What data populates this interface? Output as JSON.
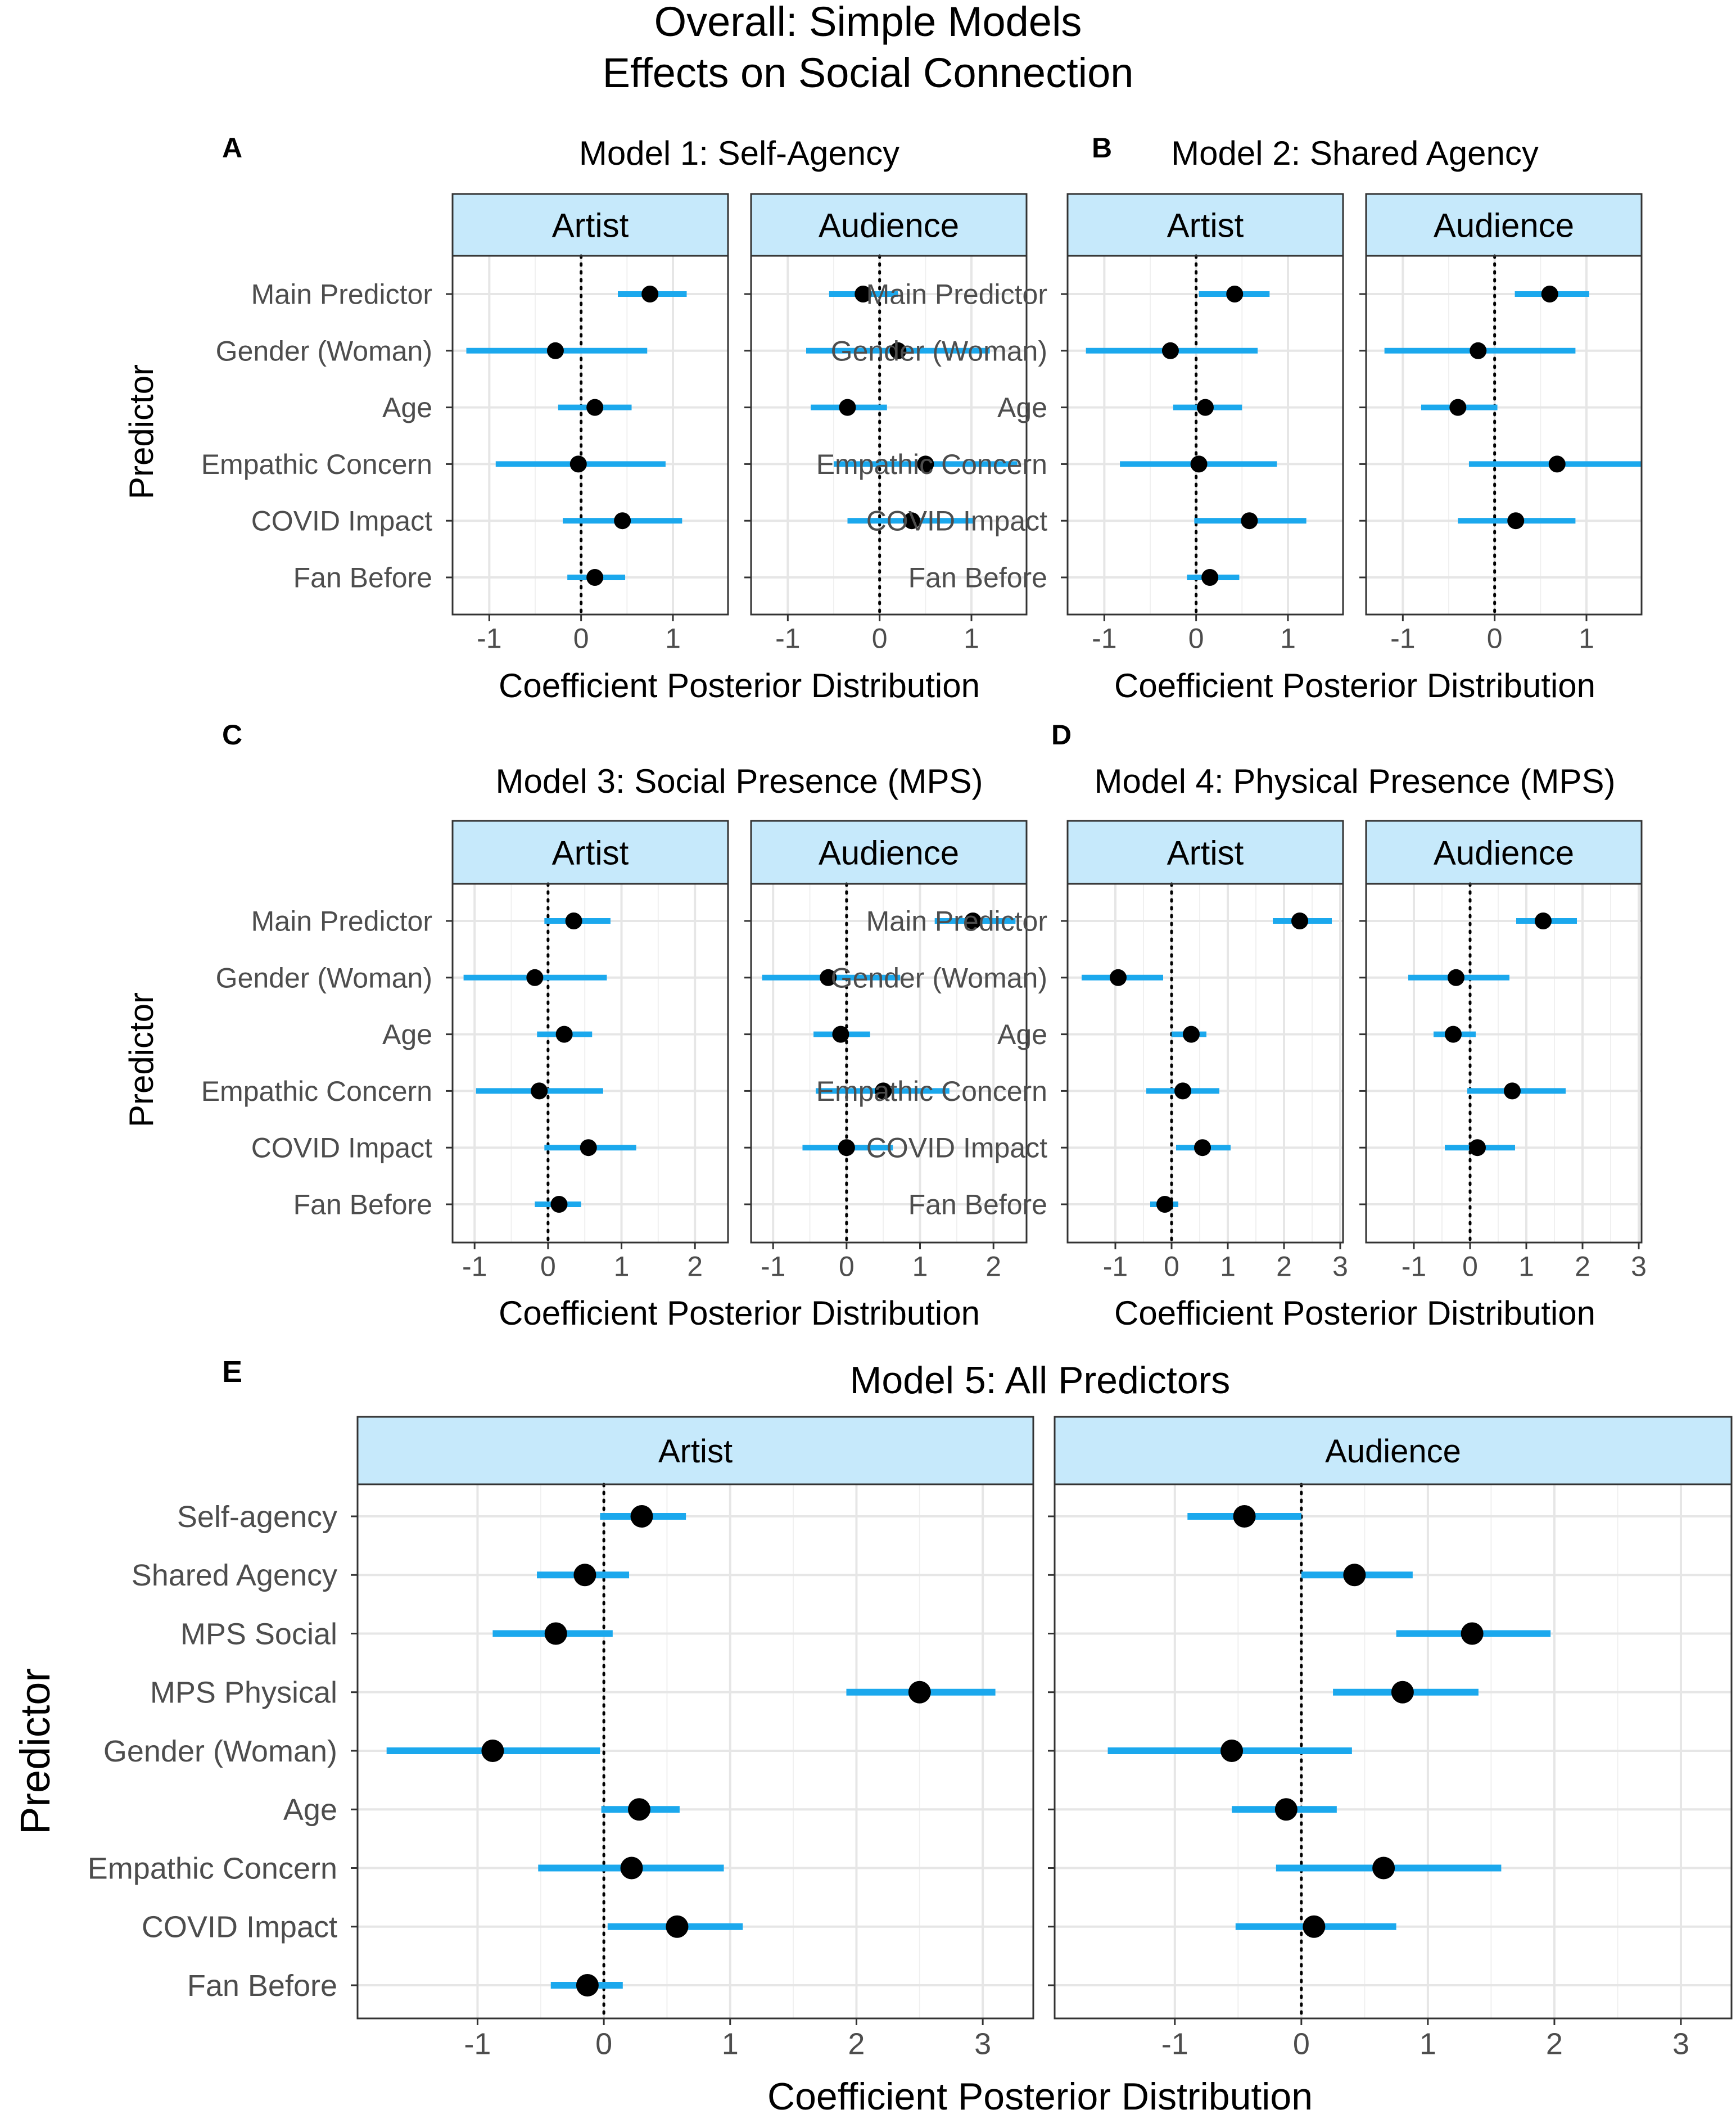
{
  "figure": {
    "title_line1": "Overall: Simple Models",
    "title_line2": "Effects on Social Connection"
  },
  "colors": {
    "strip_fill": "#c6e9fb",
    "interval": "#1ba8ed",
    "point": "#000000",
    "grid": "#e6e6e6",
    "border": "#333333"
  },
  "chart_data": [
    {
      "type": "scatter",
      "panel_tag": "A",
      "title": "Model 1: Self-Agency",
      "xlabel": "Coefficient Posterior Distribution",
      "ylabel": "Predictor",
      "predictors": [
        "Main Predictor",
        "Gender (Woman)",
        "Age",
        "Empathic Concern",
        "COVID Impact",
        "Fan Before"
      ],
      "xlim": [
        -1.4,
        1.6
      ],
      "xticks": [
        -1,
        0,
        1
      ],
      "facets": [
        {
          "label": "Artist",
          "estimates": [
            0.75,
            -0.28,
            0.15,
            -0.03,
            0.45,
            0.15
          ],
          "lower": [
            0.4,
            -1.25,
            -0.25,
            -0.93,
            -0.2,
            -0.15
          ],
          "upper": [
            1.15,
            0.72,
            0.55,
            0.92,
            1.1,
            0.48
          ]
        },
        {
          "label": "Audience",
          "estimates": [
            -0.18,
            0.2,
            -0.35,
            0.5,
            0.35,
            null
          ],
          "lower": [
            -0.55,
            -0.8,
            -0.75,
            -0.5,
            -0.35,
            null
          ],
          "upper": [
            0.2,
            1.2,
            0.08,
            1.5,
            1.03,
            null
          ]
        }
      ]
    },
    {
      "type": "scatter",
      "panel_tag": "B",
      "title": "Model 2: Shared Agency",
      "xlabel": "Coefficient Posterior Distribution",
      "ylabel": "",
      "predictors": [
        "Main Predictor",
        "Gender (Woman)",
        "Age",
        "Empathic Concern",
        "COVID Impact",
        "Fan Before"
      ],
      "xlim": [
        -1.4,
        1.6
      ],
      "xticks": [
        -1,
        0,
        1
      ],
      "facets": [
        {
          "label": "Artist",
          "estimates": [
            0.42,
            -0.28,
            0.1,
            0.03,
            0.58,
            0.15
          ],
          "lower": [
            0.03,
            -1.2,
            -0.25,
            -0.83,
            -0.02,
            -0.1
          ],
          "upper": [
            0.8,
            0.67,
            0.5,
            0.88,
            1.2,
            0.47
          ]
        },
        {
          "label": "Audience",
          "estimates": [
            0.6,
            -0.18,
            -0.4,
            0.68,
            0.23,
            null
          ],
          "lower": [
            0.22,
            -1.2,
            -0.8,
            -0.28,
            -0.4,
            null
          ],
          "upper": [
            1.03,
            0.88,
            0.03,
            1.6,
            0.88,
            null
          ]
        }
      ]
    },
    {
      "type": "scatter",
      "panel_tag": "C",
      "title": "Model 3: Social Presence (MPS)",
      "xlabel": "Coefficient Posterior Distribution",
      "ylabel": "Predictor",
      "predictors": [
        "Main Predictor",
        "Gender (Woman)",
        "Age",
        "Empathic Concern",
        "COVID Impact",
        "Fan Before"
      ],
      "xlim": [
        -1.3,
        2.45
      ],
      "xticks": [
        -1,
        0,
        1,
        2
      ],
      "facets": [
        {
          "label": "Artist",
          "estimates": [
            0.35,
            -0.18,
            0.22,
            -0.12,
            0.55,
            0.15
          ],
          "lower": [
            -0.05,
            -1.15,
            -0.15,
            -0.98,
            -0.05,
            -0.18
          ],
          "upper": [
            0.85,
            0.8,
            0.6,
            0.75,
            1.2,
            0.45
          ]
        },
        {
          "label": "Audience",
          "estimates": [
            1.72,
            -0.25,
            -0.08,
            0.5,
            0.0,
            null
          ],
          "lower": [
            1.2,
            -1.15,
            -0.45,
            -0.42,
            -0.6,
            null
          ],
          "upper": [
            2.3,
            0.73,
            0.32,
            1.4,
            0.63,
            null
          ]
        }
      ]
    },
    {
      "type": "scatter",
      "panel_tag": "D",
      "title": "Model 4: Physical Presence (MPS)",
      "xlabel": "Coefficient Posterior Distribution",
      "ylabel": "",
      "predictors": [
        "Main Predictor",
        "Gender (Woman)",
        "Age",
        "Empathic Concern",
        "COVID Impact",
        "Fan Before"
      ],
      "xlim": [
        -1.85,
        3.05
      ],
      "xticks": [
        -1,
        0,
        1,
        2,
        3
      ],
      "facets": [
        {
          "label": "Artist",
          "estimates": [
            2.28,
            -0.95,
            0.35,
            0.2,
            0.55,
            -0.12
          ],
          "lower": [
            1.8,
            -1.6,
            0.0,
            -0.45,
            0.08,
            -0.38
          ],
          "upper": [
            2.85,
            -0.15,
            0.62,
            0.85,
            1.05,
            0.12
          ]
        },
        {
          "label": "Audience",
          "estimates": [
            1.3,
            -0.25,
            -0.3,
            0.75,
            0.13,
            null
          ],
          "lower": [
            0.82,
            -1.1,
            -0.65,
            -0.05,
            -0.45,
            null
          ],
          "upper": [
            1.9,
            0.7,
            0.1,
            1.7,
            0.8,
            null
          ]
        }
      ]
    },
    {
      "type": "scatter",
      "panel_tag": "E",
      "title": "Model 5: All Predictors",
      "xlabel": "Coefficient Posterior Distribution",
      "ylabel": "Predictor",
      "predictors": [
        "Self-agency",
        "Shared Agency",
        "MPS Social",
        "MPS Physical",
        "Gender (Woman)",
        "Age",
        "Empathic Concern",
        "COVID Impact",
        "Fan Before"
      ],
      "xlim": [
        -1.95,
        3.4
      ],
      "xticks": [
        -1,
        0,
        1,
        2,
        3
      ],
      "facets": [
        {
          "label": "Artist",
          "estimates": [
            0.3,
            -0.15,
            -0.38,
            2.5,
            -0.88,
            0.28,
            0.22,
            0.58,
            -0.13
          ],
          "lower": [
            -0.03,
            -0.53,
            -0.88,
            1.92,
            -1.72,
            -0.02,
            -0.52,
            0.03,
            -0.42
          ],
          "upper": [
            0.65,
            0.2,
            0.07,
            3.1,
            -0.03,
            0.6,
            0.95,
            1.1,
            0.15
          ]
        },
        {
          "label": "Audience",
          "estimates": [
            -0.45,
            0.42,
            1.35,
            0.8,
            -0.55,
            -0.12,
            0.65,
            0.1,
            null
          ],
          "lower": [
            -0.9,
            0.0,
            0.75,
            0.25,
            -1.53,
            -0.55,
            -0.2,
            -0.52,
            null
          ],
          "upper": [
            0.0,
            0.88,
            1.97,
            1.4,
            0.4,
            0.28,
            1.58,
            0.75,
            null
          ]
        }
      ]
    }
  ]
}
